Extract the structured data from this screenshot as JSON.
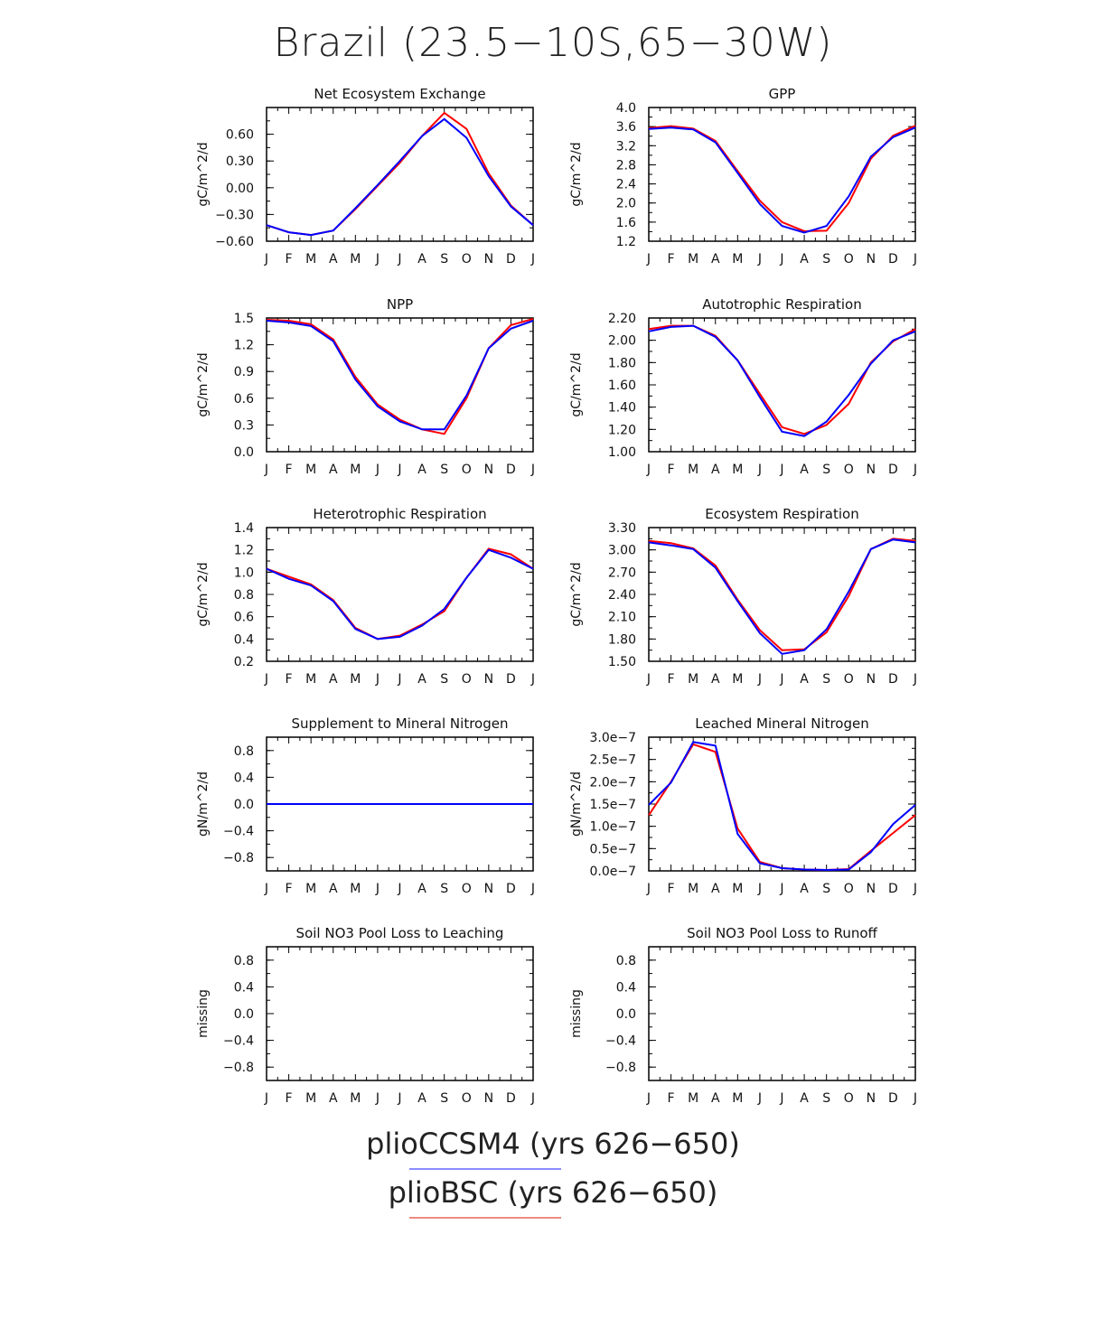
{
  "title": "Brazil (23.5-10S,65-30W)",
  "months": [
    "J",
    "F",
    "M",
    "A",
    "M",
    "J",
    "J",
    "A",
    "S",
    "O",
    "N",
    "D",
    "J"
  ],
  "colors": {
    "pliobsc": "#ff0000",
    "pliobsc_legend": "#f08a80",
    "pliocc": "#0000ff",
    "pliocc_legend": "#8a8cff",
    "axis": "#000000"
  },
  "legend": [
    {
      "label": "plioCCSM4 (yrs 626-650)",
      "color": "#8a8cff"
    },
    {
      "label": "plioBSC (yrs 626-650)",
      "color": "#f08a80"
    }
  ],
  "chart_data": [
    {
      "type": "line",
      "title": "Net Ecosystem Exchange",
      "ylabel": "gC/m^2/d",
      "ylim": [
        -0.6,
        0.9
      ],
      "yticks": [
        -0.6,
        -0.3,
        0.0,
        0.3,
        0.6
      ],
      "ytick_labels": [
        "-0.60",
        "-0.30",
        "0.00",
        "0.30",
        "0.60"
      ],
      "series": [
        {
          "name": "plioBSC",
          "values": [
            -0.42,
            -0.5,
            -0.53,
            -0.48,
            -0.24,
            0.02,
            0.28,
            0.58,
            0.84,
            0.66,
            0.16,
            -0.2,
            -0.42
          ]
        },
        {
          "name": "plioCCSM4",
          "values": [
            -0.42,
            -0.5,
            -0.53,
            -0.48,
            -0.23,
            0.03,
            0.3,
            0.58,
            0.77,
            0.56,
            0.13,
            -0.21,
            -0.42
          ]
        }
      ]
    },
    {
      "type": "line",
      "title": "GPP",
      "ylabel": "gC/m^2/d",
      "ylim": [
        1.2,
        4.0
      ],
      "yticks": [
        1.2,
        1.6,
        2.0,
        2.4,
        2.8,
        3.2,
        3.6,
        4.0
      ],
      "ytick_labels": [
        "1.2",
        "1.6",
        "2.0",
        "2.4",
        "2.8",
        "3.2",
        "3.6",
        "4.0"
      ],
      "series": [
        {
          "name": "plioBSC",
          "values": [
            3.57,
            3.61,
            3.56,
            3.3,
            2.67,
            2.05,
            1.6,
            1.41,
            1.42,
            2.0,
            2.93,
            3.41,
            3.62
          ]
        },
        {
          "name": "plioCCSM4",
          "values": [
            3.55,
            3.58,
            3.54,
            3.27,
            2.63,
            1.98,
            1.52,
            1.38,
            1.52,
            2.14,
            2.97,
            3.38,
            3.58
          ]
        }
      ]
    },
    {
      "type": "line",
      "title": "NPP",
      "ylabel": "gC/m^2/d",
      "ylim": [
        0.0,
        1.5
      ],
      "yticks": [
        0.0,
        0.3,
        0.6,
        0.9,
        1.2,
        1.5
      ],
      "ytick_labels": [
        "0.0",
        "0.3",
        "0.6",
        "0.9",
        "1.2",
        "1.5"
      ],
      "series": [
        {
          "name": "plioBSC",
          "values": [
            1.48,
            1.47,
            1.43,
            1.26,
            0.84,
            0.53,
            0.36,
            0.25,
            0.2,
            0.6,
            1.16,
            1.42,
            1.49
          ]
        },
        {
          "name": "plioCCSM4",
          "values": [
            1.47,
            1.45,
            1.41,
            1.24,
            0.81,
            0.51,
            0.34,
            0.25,
            0.25,
            0.63,
            1.16,
            1.38,
            1.47
          ]
        }
      ]
    },
    {
      "type": "line",
      "title": "Autotrophic Respiration",
      "ylabel": "gC/m^2/d",
      "ylim": [
        1.0,
        2.2
      ],
      "yticks": [
        1.0,
        1.2,
        1.4,
        1.6,
        1.8,
        2.0,
        2.2
      ],
      "ytick_labels": [
        "1.00",
        "1.20",
        "1.40",
        "1.60",
        "1.80",
        "2.00",
        "2.20"
      ],
      "series": [
        {
          "name": "plioBSC",
          "values": [
            2.1,
            2.13,
            2.13,
            2.04,
            1.82,
            1.52,
            1.22,
            1.16,
            1.24,
            1.43,
            1.8,
            1.99,
            2.1
          ]
        },
        {
          "name": "plioCCSM4",
          "values": [
            2.08,
            2.12,
            2.13,
            2.03,
            1.82,
            1.49,
            1.18,
            1.14,
            1.27,
            1.51,
            1.79,
            2.0,
            2.08
          ]
        }
      ]
    },
    {
      "type": "line",
      "title": "Heterotrophic Respiration",
      "ylabel": "gC/m^2/d",
      "ylim": [
        0.2,
        1.4
      ],
      "yticks": [
        0.2,
        0.4,
        0.6,
        0.8,
        1.0,
        1.2,
        1.4
      ],
      "ytick_labels": [
        "0.2",
        "0.4",
        "0.6",
        "0.8",
        "1.0",
        "1.2",
        "1.4"
      ],
      "series": [
        {
          "name": "plioBSC",
          "values": [
            1.03,
            0.96,
            0.89,
            0.75,
            0.5,
            0.4,
            0.43,
            0.53,
            0.65,
            0.95,
            1.21,
            1.16,
            1.03
          ]
        },
        {
          "name": "plioCCSM4",
          "values": [
            1.03,
            0.94,
            0.88,
            0.74,
            0.49,
            0.4,
            0.42,
            0.52,
            0.67,
            0.95,
            1.2,
            1.13,
            1.03
          ]
        }
      ]
    },
    {
      "type": "line",
      "title": "Ecosystem Respiration",
      "ylabel": "gC/m^2/d",
      "ylim": [
        1.5,
        3.3
      ],
      "yticks": [
        1.5,
        1.8,
        2.1,
        2.4,
        2.7,
        3.0,
        3.3
      ],
      "ytick_labels": [
        "1.50",
        "1.80",
        "2.10",
        "2.40",
        "2.70",
        "3.00",
        "3.30"
      ],
      "series": [
        {
          "name": "plioBSC",
          "values": [
            3.12,
            3.09,
            3.02,
            2.79,
            2.33,
            1.92,
            1.65,
            1.66,
            1.89,
            2.38,
            3.01,
            3.15,
            3.12
          ]
        },
        {
          "name": "plioCCSM4",
          "values": [
            3.1,
            3.06,
            3.01,
            2.76,
            2.31,
            1.88,
            1.6,
            1.65,
            1.93,
            2.44,
            3.01,
            3.14,
            3.1
          ]
        }
      ]
    },
    {
      "type": "line",
      "title": "Supplement to Mineral Nitrogen",
      "ylabel": "gN/m^2/d",
      "ylim": [
        -1.0,
        1.0
      ],
      "yticks": [
        -0.8,
        -0.4,
        0.0,
        0.4,
        0.8
      ],
      "ytick_labels": [
        "-0.8",
        "-0.4",
        "0.0",
        "0.4",
        "0.8"
      ],
      "series": [
        {
          "name": "plioBSC",
          "values": [
            0,
            0,
            0,
            0,
            0,
            0,
            0,
            0,
            0,
            0,
            0,
            0,
            0
          ]
        },
        {
          "name": "plioCCSM4",
          "values": [
            0,
            0,
            0,
            0,
            0,
            0,
            0,
            0,
            0,
            0,
            0,
            0,
            0
          ]
        }
      ]
    },
    {
      "type": "line",
      "title": "Leached Mineral Nitrogen",
      "ylabel": "gN/m^2/d",
      "ylim": [
        0.0,
        3e-07
      ],
      "yticks": [
        0,
        5e-08,
        1e-07,
        1.5e-07,
        2e-07,
        2.5e-07,
        3e-07
      ],
      "ytick_labels": [
        "0.0e-7",
        "0.5e-7",
        "1.0e-7",
        "1.5e-7",
        "2.0e-7",
        "2.5e-7",
        "3.0e-7"
      ],
      "series": [
        {
          "name": "plioBSC",
          "values": [
            1.25e-07,
            2e-07,
            2.84e-07,
            2.67e-07,
            9.5e-08,
            2e-08,
            6e-09,
            3e-09,
            2e-09,
            4e-09,
            4.5e-08,
            8.5e-08,
            1.25e-07
          ]
        },
        {
          "name": "plioCCSM4",
          "values": [
            1.48e-07,
            1.98e-07,
            2.89e-07,
            2.81e-07,
            8.3e-08,
            1.7e-08,
            6e-09,
            3e-09,
            2e-09,
            3e-09,
            4.2e-08,
            1.05e-07,
            1.48e-07
          ]
        }
      ]
    },
    {
      "type": "line",
      "title": "Soil NO3 Pool Loss to Leaching",
      "ylabel": "missing",
      "ylim": [
        -1.0,
        1.0
      ],
      "yticks": [
        -0.8,
        -0.4,
        0.0,
        0.4,
        0.8
      ],
      "ytick_labels": [
        "-0.8",
        "-0.4",
        "0.0",
        "0.4",
        "0.8"
      ],
      "series": []
    },
    {
      "type": "line",
      "title": "Soil NO3 Pool Loss to Runoff",
      "ylabel": "missing",
      "ylim": [
        -1.0,
        1.0
      ],
      "yticks": [
        -0.8,
        -0.4,
        0.0,
        0.4,
        0.8
      ],
      "ytick_labels": [
        "-0.8",
        "-0.4",
        "0.0",
        "0.4",
        "0.8"
      ],
      "series": []
    }
  ]
}
